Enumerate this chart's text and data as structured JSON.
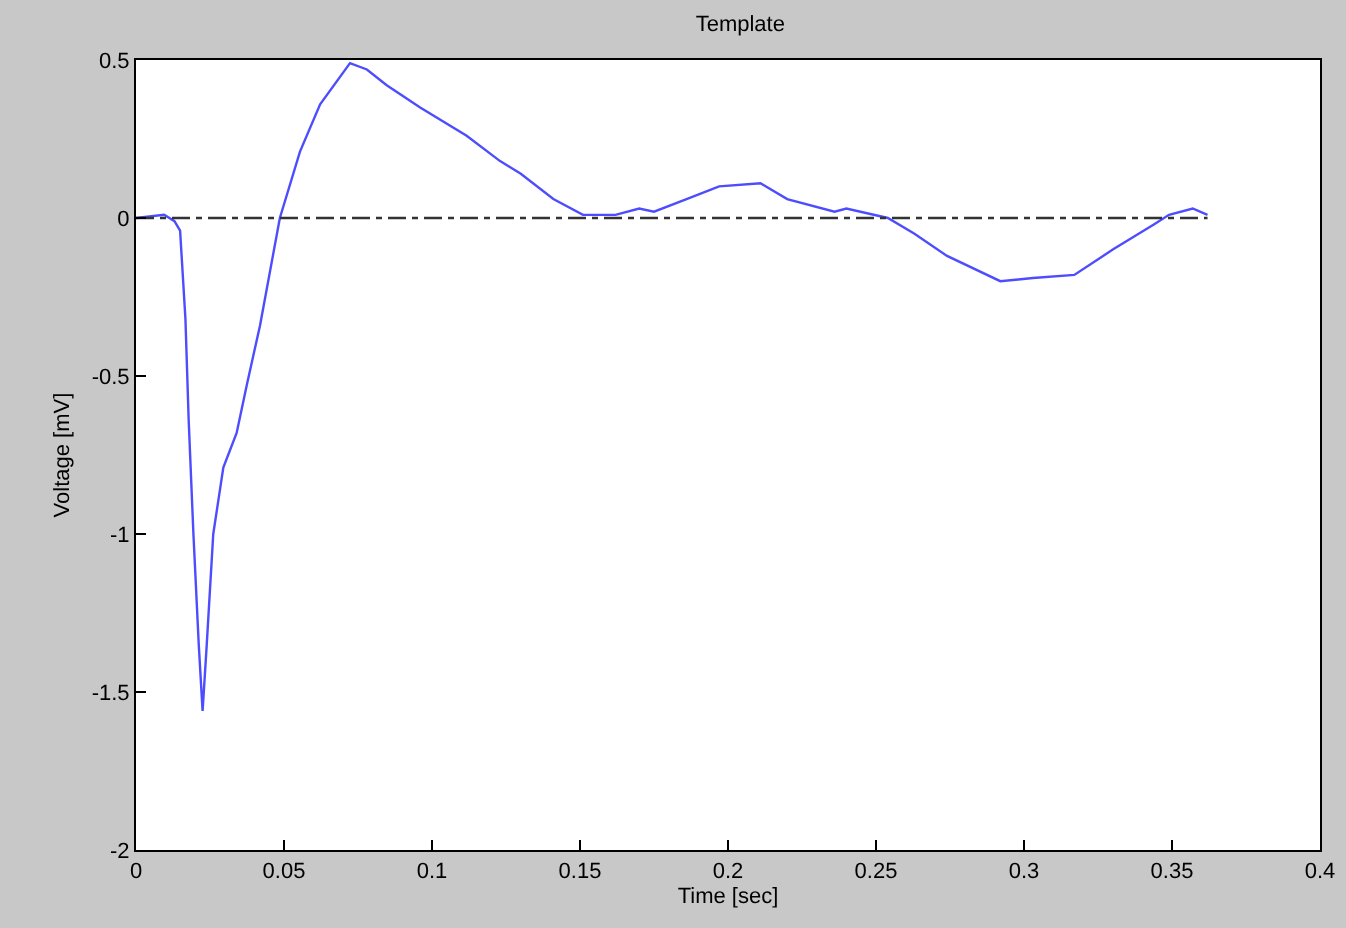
{
  "chart_data": {
    "type": "line",
    "title": "Template",
    "xlabel": "Time [sec]",
    "ylabel": "Voltage [mV]",
    "xlim": [
      0,
      0.4
    ],
    "xticks": [
      0,
      0.05,
      0.1,
      0.15,
      0.2,
      0.25,
      0.3,
      0.35,
      0.4
    ],
    "ylim": [
      -2,
      0.5
    ],
    "yticks": [
      -2,
      -1.5,
      -1,
      -0.5,
      0,
      0.5
    ],
    "series": [
      {
        "color": "#4d4dff",
        "line_style": "solid",
        "x": [
          0,
          0.0095,
          0.013,
          0.0149,
          0.0167,
          0.0178,
          0.0194,
          0.0212,
          0.0225,
          0.0239,
          0.0261,
          0.0295,
          0.034,
          0.0374,
          0.0419,
          0.0486,
          0.0554,
          0.0622,
          0.0723,
          0.078,
          0.0847,
          0.096,
          0.1117,
          0.123,
          0.13,
          0.141,
          0.151,
          0.162,
          0.17,
          0.175,
          0.186,
          0.197,
          0.211,
          0.22,
          0.236,
          0.24,
          0.254,
          0.263,
          0.274,
          0.292,
          0.303,
          0.317,
          0.33,
          0.344,
          0.349,
          0.357,
          0.362
        ],
        "values": [
          0,
          0.01,
          -0.01,
          -0.04,
          -0.32,
          -0.64,
          -1.0,
          -1.35,
          -1.56,
          -1.35,
          -1.0,
          -0.79,
          -0.68,
          -0.53,
          -0.34,
          0,
          0.21,
          0.36,
          0.49,
          0.47,
          0.42,
          0.35,
          0.26,
          0.18,
          0.14,
          0.06,
          0.01,
          0.01,
          0.03,
          0.02,
          0.06,
          0.1,
          0.11,
          0.06,
          0.02,
          0.03,
          0,
          -0.05,
          -0.12,
          -0.2,
          -0.19,
          -0.18,
          -0.1,
          -0.02,
          0.01,
          0.03,
          0.01
        ]
      },
      {
        "color": "#333333",
        "line_style": "dashdot",
        "x": [
          0,
          0.362
        ],
        "values": [
          0,
          0
        ]
      }
    ]
  }
}
